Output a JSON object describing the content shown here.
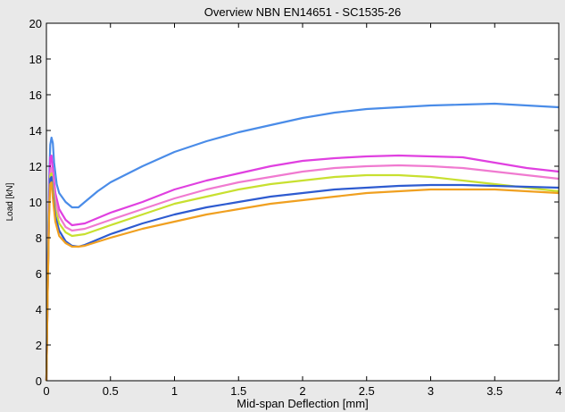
{
  "chart_data": {
    "type": "line",
    "title": "Overview NBN EN14651 -   SC1535-26",
    "xlabel": "Mid-span Deflection [mm]",
    "ylabel": "Load [kN]",
    "xlim": [
      0,
      4
    ],
    "ylim": [
      0,
      20
    ],
    "x_ticks": [
      0,
      0.5,
      1,
      1.5,
      2,
      2.5,
      3,
      3.5,
      4
    ],
    "x_tick_labels": [
      "0",
      "0.5",
      "1",
      "1.5",
      "2",
      "2.5",
      "3",
      "3.5",
      "4"
    ],
    "y_ticks": [
      0,
      2,
      4,
      6,
      8,
      10,
      12,
      14,
      16,
      18,
      20
    ],
    "y_tick_labels": [
      "0",
      "2",
      "4",
      "6",
      "8",
      "10",
      "12",
      "14",
      "16",
      "18",
      "20"
    ],
    "grid": false,
    "series": [
      {
        "color": "#4a8ce8",
        "x": [
          0,
          0.01,
          0.02,
          0.03,
          0.04,
          0.05,
          0.06,
          0.08,
          0.1,
          0.15,
          0.2,
          0.25,
          0.3,
          0.4,
          0.5,
          0.75,
          1.0,
          1.25,
          1.5,
          1.75,
          2.0,
          2.25,
          2.5,
          2.75,
          3.0,
          3.25,
          3.5,
          3.75,
          4.0
        ],
        "y": [
          0,
          6,
          11,
          13.2,
          13.6,
          13.3,
          12.2,
          11.0,
          10.5,
          10.0,
          9.7,
          9.7,
          10.0,
          10.6,
          11.1,
          12.0,
          12.8,
          13.4,
          13.9,
          14.3,
          14.7,
          15.0,
          15.2,
          15.3,
          15.4,
          15.45,
          15.5,
          15.4,
          15.3
        ]
      },
      {
        "color": "#e040e0",
        "x": [
          0,
          0.01,
          0.02,
          0.03,
          0.04,
          0.05,
          0.07,
          0.1,
          0.15,
          0.2,
          0.3,
          0.5,
          0.75,
          1.0,
          1.25,
          1.5,
          1.75,
          2.0,
          2.25,
          2.5,
          2.75,
          3.0,
          3.25,
          3.5,
          3.75,
          4.0
        ],
        "y": [
          0,
          5,
          10,
          12.5,
          12.6,
          11.8,
          10.5,
          9.6,
          9.0,
          8.7,
          8.8,
          9.4,
          10.0,
          10.7,
          11.2,
          11.6,
          12.0,
          12.3,
          12.45,
          12.55,
          12.6,
          12.55,
          12.5,
          12.2,
          11.9,
          11.7
        ]
      },
      {
        "color": "#f07ad0",
        "x": [
          0,
          0.01,
          0.02,
          0.03,
          0.04,
          0.05,
          0.07,
          0.1,
          0.15,
          0.2,
          0.3,
          0.5,
          0.75,
          1.0,
          1.25,
          1.5,
          1.75,
          2.0,
          2.25,
          2.5,
          2.75,
          3.0,
          3.25,
          3.5,
          3.75,
          4.0
        ],
        "y": [
          0,
          5,
          9.5,
          11.6,
          11.9,
          11.2,
          10.1,
          9.2,
          8.6,
          8.4,
          8.5,
          9.0,
          9.6,
          10.2,
          10.7,
          11.1,
          11.4,
          11.7,
          11.9,
          12.0,
          12.05,
          12.0,
          11.9,
          11.7,
          11.5,
          11.3
        ]
      },
      {
        "color": "#c8e030",
        "x": [
          0,
          0.01,
          0.02,
          0.03,
          0.04,
          0.05,
          0.07,
          0.1,
          0.15,
          0.2,
          0.3,
          0.5,
          0.75,
          1.0,
          1.25,
          1.5,
          1.75,
          2.0,
          2.25,
          2.5,
          2.75,
          3.0,
          3.25,
          3.5,
          3.75,
          4.0
        ],
        "y": [
          0,
          5,
          9.4,
          11.5,
          11.6,
          10.8,
          9.6,
          8.8,
          8.3,
          8.1,
          8.2,
          8.7,
          9.3,
          9.9,
          10.3,
          10.7,
          11.0,
          11.2,
          11.4,
          11.5,
          11.5,
          11.4,
          11.2,
          11.0,
          10.8,
          10.6
        ]
      },
      {
        "color": "#2e5bd0",
        "x": [
          0,
          0.01,
          0.02,
          0.03,
          0.04,
          0.05,
          0.07,
          0.1,
          0.15,
          0.2,
          0.25,
          0.3,
          0.5,
          0.75,
          1.0,
          1.25,
          1.5,
          1.75,
          2.0,
          2.25,
          2.5,
          2.75,
          3.0,
          3.25,
          3.5,
          3.75,
          4.0
        ],
        "y": [
          0,
          5,
          9.2,
          11.3,
          11.4,
          10.5,
          9.2,
          8.4,
          7.8,
          7.55,
          7.5,
          7.6,
          8.2,
          8.8,
          9.3,
          9.7,
          10.0,
          10.3,
          10.5,
          10.7,
          10.8,
          10.9,
          10.95,
          10.95,
          10.9,
          10.85,
          10.8
        ]
      },
      {
        "color": "#f0a020",
        "x": [
          0,
          0.01,
          0.02,
          0.03,
          0.04,
          0.05,
          0.07,
          0.1,
          0.15,
          0.2,
          0.25,
          0.3,
          0.5,
          0.75,
          1.0,
          1.25,
          1.5,
          1.75,
          2.0,
          2.25,
          2.5,
          2.75,
          3.0,
          3.25,
          3.5,
          3.75,
          4.0
        ],
        "y": [
          0,
          4.8,
          9.0,
          11.0,
          11.1,
          10.2,
          8.9,
          8.1,
          7.7,
          7.5,
          7.5,
          7.55,
          8.0,
          8.5,
          8.9,
          9.3,
          9.6,
          9.9,
          10.1,
          10.3,
          10.5,
          10.6,
          10.7,
          10.7,
          10.7,
          10.6,
          10.5
        ]
      }
    ]
  }
}
